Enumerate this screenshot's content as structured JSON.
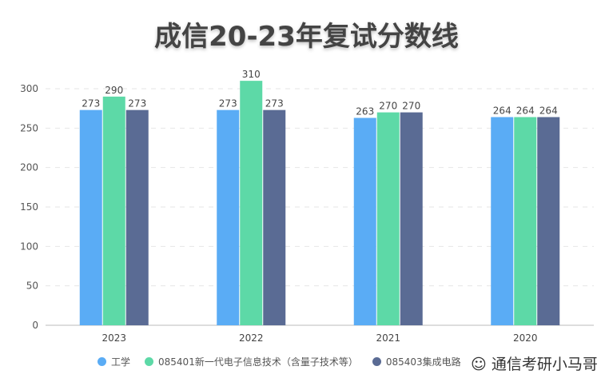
{
  "chart_data": {
    "type": "bar",
    "title": "成信20-23年复试分数线",
    "categories": [
      "2023",
      "2022",
      "2021",
      "2020"
    ],
    "series": [
      {
        "name": "工学",
        "color": "#5aacf5",
        "values": [
          273,
          273,
          263,
          264
        ]
      },
      {
        "name": "085401新一代电子信息技术（含量子技术等）",
        "color": "#5dd9a7",
        "values": [
          290,
          310,
          270,
          264
        ]
      },
      {
        "name": "085403集成电路",
        "color": "#5a6b94",
        "values": [
          273,
          273,
          270,
          264
        ]
      }
    ],
    "yticks": [
      0,
      50,
      100,
      150,
      200,
      250,
      300
    ],
    "ylim": [
      0,
      300
    ],
    "grid": true,
    "legend": "bottom"
  },
  "watermark": "通信考研小马哥"
}
